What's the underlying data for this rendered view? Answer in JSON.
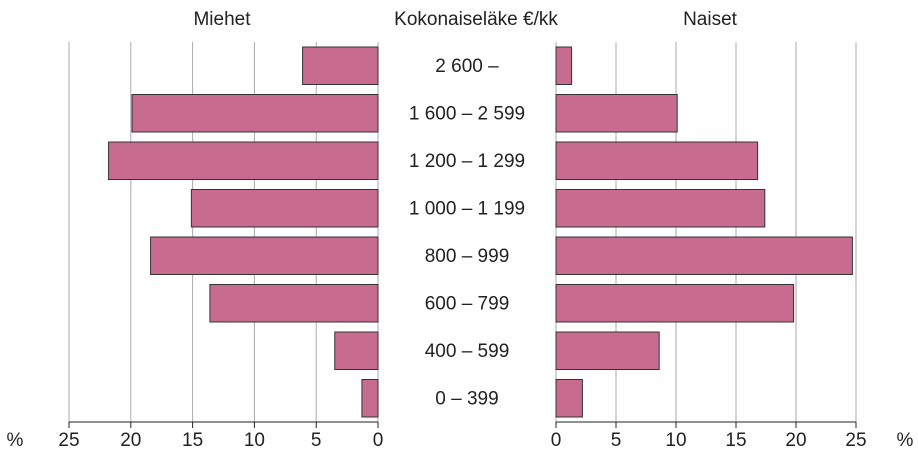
{
  "chart_data": {
    "type": "bar",
    "center_label": "Kokonaiseläke €/kk",
    "xlabel": "%",
    "categories": [
      "2 600 –",
      "1 600 – 2 599",
      "1 200 – 1 299",
      "1 000 – 1 199",
      "800 – 999",
      "600 – 799",
      "400 – 599",
      "0 – 399"
    ],
    "series": [
      {
        "name": "Miehet",
        "color": "#c76b8f",
        "values": [
          6.1,
          19.9,
          21.8,
          15.1,
          18.4,
          13.6,
          3.5,
          1.3
        ]
      },
      {
        "name": "Naiset",
        "color": "#c76b8f",
        "values": [
          1.3,
          10.1,
          16.8,
          17.4,
          24.7,
          19.8,
          8.6,
          2.2
        ]
      }
    ],
    "xlim": [
      0,
      25
    ],
    "xticks": [
      0,
      5,
      10,
      15,
      20,
      25
    ],
    "grid": true
  }
}
